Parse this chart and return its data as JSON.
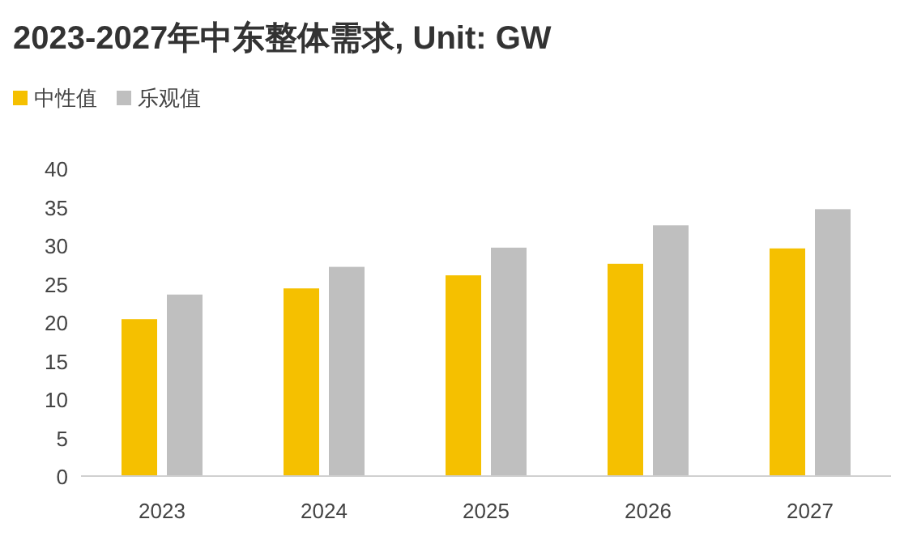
{
  "chart_data": {
    "type": "bar",
    "title": "2023-2027年中东整体需求, Unit: GW",
    "categories": [
      "2023",
      "2024",
      "2025",
      "2026",
      "2027"
    ],
    "series": [
      {
        "name": "中性值",
        "color": "#f5c000",
        "values": [
          20.4,
          24.4,
          26.1,
          27.6,
          29.6
        ]
      },
      {
        "name": "乐观值",
        "color": "#bfbfbf",
        "values": [
          23.6,
          27.2,
          29.7,
          32.6,
          34.7
        ]
      }
    ],
    "ylim": [
      0,
      40
    ],
    "yticks": [
      0,
      5,
      10,
      15,
      20,
      25,
      30,
      35,
      40
    ],
    "grid": false,
    "legend": "top left"
  }
}
